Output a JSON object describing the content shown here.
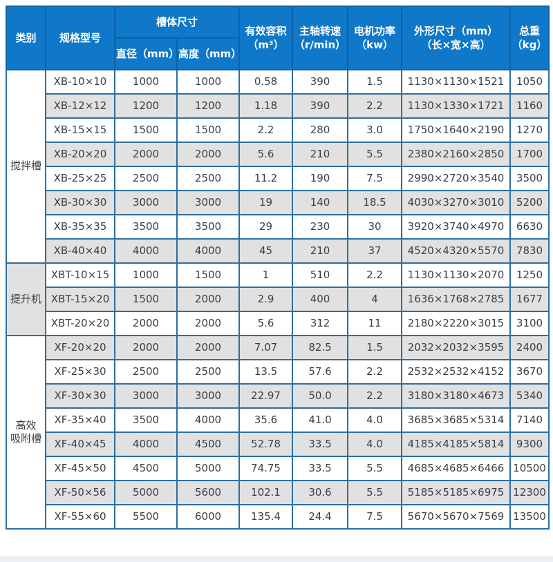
{
  "colors": {
    "header_bg": "#1078c8",
    "header_text": "#ffffff",
    "header_border": "#0b62a8",
    "grid_border": "#2d6ea0",
    "stripe_gray": "#e1e1e1",
    "body_text": "#3d3d47",
    "page_bg": "#ffffff",
    "bottom_strip": "#edf0f6"
  },
  "table": {
    "headers": {
      "category": "类别",
      "model": "规格型号",
      "tank_size": "槽体尺寸",
      "diameter": "直径（mm）",
      "height": "高度（mm）",
      "volume": "有效容积\n（m³）",
      "speed": "主轴转速\n（r/min）",
      "power": "电机功率\n（kw）",
      "dimensions": "外形尺寸（mm）\n（长×宽×高）",
      "weight": "总重\n（kg）"
    },
    "groups": [
      {
        "category": "搅拌槽",
        "rows": [
          {
            "model": "XB-10×10",
            "diameter": "1000",
            "height": "1000",
            "volume": "0.58",
            "speed": "390",
            "power": "1.5",
            "dimensions": "1130×1130×1521",
            "weight": "1050"
          },
          {
            "model": "XB-12×12",
            "diameter": "1200",
            "height": "1200",
            "volume": "1.18",
            "speed": "390",
            "power": "2.2",
            "dimensions": "1130×1330×1721",
            "weight": "1160"
          },
          {
            "model": "XB-15×15",
            "diameter": "1500",
            "height": "1500",
            "volume": "2.2",
            "speed": "280",
            "power": "3.0",
            "dimensions": "1750×1640×2190",
            "weight": "1270"
          },
          {
            "model": "XB-20×20",
            "diameter": "2000",
            "height": "2000",
            "volume": "5.6",
            "speed": "210",
            "power": "5.5",
            "dimensions": "2380×2160×2850",
            "weight": "1700"
          },
          {
            "model": "XB-25×25",
            "diameter": "2500",
            "height": "2500",
            "volume": "11.2",
            "speed": "190",
            "power": "7.5",
            "dimensions": "2990×2720×3540",
            "weight": "3500"
          },
          {
            "model": "XB-30×30",
            "diameter": "3000",
            "height": "3000",
            "volume": "19",
            "speed": "140",
            "power": "18.5",
            "dimensions": "4030×3270×3010",
            "weight": "5200"
          },
          {
            "model": "XB-35×35",
            "diameter": "3500",
            "height": "3500",
            "volume": "29",
            "speed": "230",
            "power": "30",
            "dimensions": "3920×3740×4970",
            "weight": "6630"
          },
          {
            "model": "XB-40×40",
            "diameter": "4000",
            "height": "4000",
            "volume": "45",
            "speed": "210",
            "power": "37",
            "dimensions": "4520×4320×5570",
            "weight": "7830"
          }
        ]
      },
      {
        "category": "提升机",
        "rows": [
          {
            "model": "XBT-10×15",
            "diameter": "1000",
            "height": "1500",
            "volume": "1",
            "speed": "510",
            "power": "2.2",
            "dimensions": "1130×1130×2070",
            "weight": "1250"
          },
          {
            "model": "XBT-15×20",
            "diameter": "1500",
            "height": "2000",
            "volume": "2.9",
            "speed": "400",
            "power": "4",
            "dimensions": "1636×1768×2785",
            "weight": "1677"
          },
          {
            "model": "XBT-20×20",
            "diameter": "2000",
            "height": "2000",
            "volume": "5.6",
            "speed": "312",
            "power": "11",
            "dimensions": "2180×2220×3015",
            "weight": "3100"
          }
        ]
      },
      {
        "category": "高效\n吸附槽",
        "rows": [
          {
            "model": "XF-20×20",
            "diameter": "2000",
            "height": "2000",
            "volume": "7.07",
            "speed": "82.5",
            "power": "1.5",
            "dimensions": "2032×2032×3595",
            "weight": "2400"
          },
          {
            "model": "XF-25×30",
            "diameter": "2500",
            "height": "2500",
            "volume": "13.5",
            "speed": "57.6",
            "power": "2.2",
            "dimensions": "2532×2532×4152",
            "weight": "3670"
          },
          {
            "model": "XF-30×30",
            "diameter": "3000",
            "height": "3000",
            "volume": "22.97",
            "speed": "50.0",
            "power": "2.2",
            "dimensions": "3180×3180×4673",
            "weight": "5340"
          },
          {
            "model": "XF-35×40",
            "diameter": "3500",
            "height": "4000",
            "volume": "35.6",
            "speed": "41.0",
            "power": "4.0",
            "dimensions": "3685×3685×5314",
            "weight": "7140"
          },
          {
            "model": "XF-40×45",
            "diameter": "4000",
            "height": "4500",
            "volume": "52.78",
            "speed": "33.5",
            "power": "4.0",
            "dimensions": "4185×4185×5814",
            "weight": "9300"
          },
          {
            "model": "XF-45×50",
            "diameter": "4500",
            "height": "5000",
            "volume": "74.75",
            "speed": "33.5",
            "power": "5.5",
            "dimensions": "4685×4685×6466",
            "weight": "10500"
          },
          {
            "model": "XF-50×56",
            "diameter": "5000",
            "height": "5600",
            "volume": "102.1",
            "speed": "30.6",
            "power": "5.5",
            "dimensions": "5185×5185×6975",
            "weight": "12300"
          },
          {
            "model": "XF-55×60",
            "diameter": "5500",
            "height": "6000",
            "volume": "135.4",
            "speed": "24.4",
            "power": "7.5",
            "dimensions": "5670×5670×7569",
            "weight": "13500"
          }
        ]
      }
    ]
  },
  "chart_data": {
    "type": "table",
    "title": "",
    "columns": [
      "类别",
      "规格型号",
      "直径（mm）",
      "高度（mm）",
      "有效容积（m³）",
      "主轴转速（r/min）",
      "电机功率（kw）",
      "外形尺寸（mm）（长×宽×高）",
      "总重（kg）"
    ],
    "rows": [
      [
        "搅拌槽",
        "XB-10×10",
        "1000",
        "1000",
        "0.58",
        "390",
        "1.5",
        "1130×1130×1521",
        "1050"
      ],
      [
        "搅拌槽",
        "XB-12×12",
        "1200",
        "1200",
        "1.18",
        "390",
        "2.2",
        "1130×1330×1721",
        "1160"
      ],
      [
        "搅拌槽",
        "XB-15×15",
        "1500",
        "1500",
        "2.2",
        "280",
        "3.0",
        "1750×1640×2190",
        "1270"
      ],
      [
        "搅拌槽",
        "XB-20×20",
        "2000",
        "2000",
        "5.6",
        "210",
        "5.5",
        "2380×2160×2850",
        "1700"
      ],
      [
        "搅拌槽",
        "XB-25×25",
        "2500",
        "2500",
        "11.2",
        "190",
        "7.5",
        "2990×2720×3540",
        "3500"
      ],
      [
        "搅拌槽",
        "XB-30×30",
        "3000",
        "3000",
        "19",
        "140",
        "18.5",
        "4030×3270×3010",
        "5200"
      ],
      [
        "搅拌槽",
        "XB-35×35",
        "3500",
        "3500",
        "29",
        "230",
        "30",
        "3920×3740×4970",
        "6630"
      ],
      [
        "搅拌槽",
        "XB-40×40",
        "4000",
        "4000",
        "45",
        "210",
        "37",
        "4520×4320×5570",
        "7830"
      ],
      [
        "提升机",
        "XBT-10×15",
        "1000",
        "1500",
        "1",
        "510",
        "2.2",
        "1130×1130×2070",
        "1250"
      ],
      [
        "提升机",
        "XBT-15×20",
        "1500",
        "2000",
        "2.9",
        "400",
        "4",
        "1636×1768×2785",
        "1677"
      ],
      [
        "提升机",
        "XBT-20×20",
        "2000",
        "2000",
        "5.6",
        "312",
        "11",
        "2180×2220×3015",
        "3100"
      ],
      [
        "高效吸附槽",
        "XF-20×20",
        "2000",
        "2000",
        "7.07",
        "82.5",
        "1.5",
        "2032×2032×3595",
        "2400"
      ],
      [
        "高效吸附槽",
        "XF-25×30",
        "2500",
        "2500",
        "13.5",
        "57.6",
        "2.2",
        "2532×2532×4152",
        "3670"
      ],
      [
        "高效吸附槽",
        "XF-30×30",
        "3000",
        "3000",
        "22.97",
        "50.0",
        "2.2",
        "3180×3180×4673",
        "5340"
      ],
      [
        "高效吸附槽",
        "XF-35×40",
        "3500",
        "4000",
        "35.6",
        "41.0",
        "4.0",
        "3685×3685×5314",
        "7140"
      ],
      [
        "高效吸附槽",
        "XF-40×45",
        "4000",
        "4500",
        "52.78",
        "33.5",
        "4.0",
        "4185×4185×5814",
        "9300"
      ],
      [
        "高效吸附槽",
        "XF-45×50",
        "4500",
        "5000",
        "74.75",
        "33.5",
        "5.5",
        "4685×4685×6466",
        "10500"
      ],
      [
        "高效吸附槽",
        "XF-50×56",
        "5000",
        "5600",
        "102.1",
        "30.6",
        "5.5",
        "5185×5185×6975",
        "12300"
      ],
      [
        "高效吸附槽",
        "XF-55×60",
        "5500",
        "6000",
        "135.4",
        "24.4",
        "7.5",
        "5670×5670×7569",
        "13500"
      ]
    ]
  }
}
